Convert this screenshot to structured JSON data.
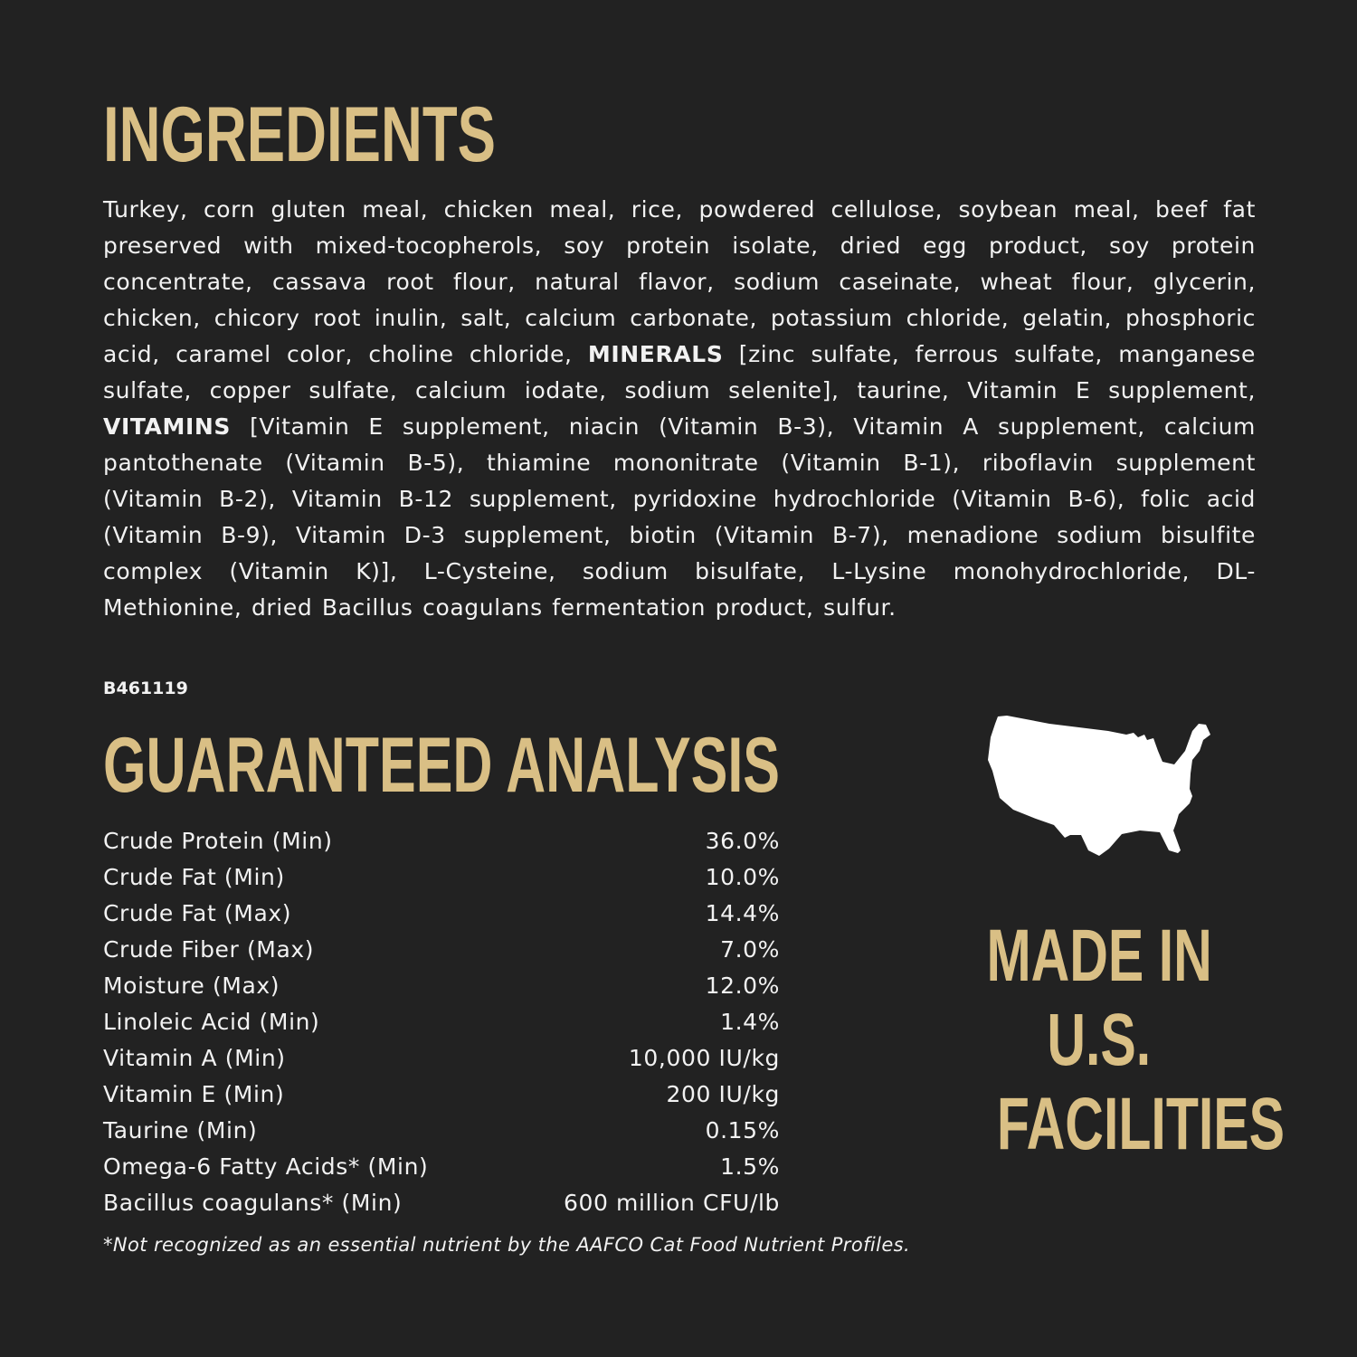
{
  "ingredients": {
    "title": "INGREDIENTS",
    "text_1": "Turkey, corn gluten meal, chicken meal, rice, powdered cellulose, soybean meal, beef fat preserved with mixed-tocopherols, soy protein isolate, dried egg product, soy protein concentrate, cassava root flour, natural flavor, sodium caseinate, wheat flour, glycerin, chicken, chicory root inulin, salt, calcium carbonate, potassium chloride, gelatin, phosphoric acid, caramel color, choline chloride, ",
    "minerals_label": "MINERALS",
    "text_2": " [zinc sulfate, ferrous sulfate, manganese sulfate, copper sulfate, calcium iodate, sodium selenite], taurine, Vitamin E supplement, ",
    "vitamins_label": "VITAMINS",
    "text_3": " [Vitamin E supplement, niacin (Vitamin B-3), Vitamin A supplement, calcium pantothenate (Vitamin B-5), thiamine mononitrate (Vitamin B-1), riboflavin supplement (Vitamin B-2), Vitamin B-12 supplement, pyridoxine hydrochloride (Vitamin B-6), folic acid (Vitamin B-9), Vitamin D-3 supplement, biotin (Vitamin B-7), menadione sodium bisulfite complex (Vitamin K)], L-Cysteine, sodium bisulfate, L-Lysine monohydrochloride, DL-Methionine, dried Bacillus coagulans fermentation product, sulfur.",
    "code": "B461119"
  },
  "analysis": {
    "title": "GUARANTEED ANALYSIS",
    "rows": [
      {
        "label": "Crude Protein (Min)",
        "value": "36.0%"
      },
      {
        "label": "Crude Fat (Min)",
        "value": "10.0%"
      },
      {
        "label": "Crude Fat (Max)",
        "value": "14.4%"
      },
      {
        "label": "Crude Fiber (Max)",
        "value": "7.0%"
      },
      {
        "label": "Moisture (Max)",
        "value": "12.0%"
      },
      {
        "label": "Linoleic Acid (Min)",
        "value": "1.4%"
      },
      {
        "label": "Vitamin A (Min)",
        "value": "10,000 IU/kg"
      },
      {
        "label": "Vitamin E (Min)",
        "value": "200 IU/kg"
      },
      {
        "label": "Taurine (Min)",
        "value": "0.15%"
      },
      {
        "label": "Omega-6 Fatty Acids* (Min)",
        "value": "1.5%"
      },
      {
        "label": "Bacillus coagulans* (Min)",
        "value": "600 million CFU/lb"
      }
    ],
    "footnote": "*Not recognized as an essential nutrient by the AAFCO Cat Food Nutrient Profiles."
  },
  "made_in": {
    "icon": "usa-map-icon",
    "lines": [
      "MADE IN",
      "U.S.",
      "FACILITIES"
    ]
  },
  "colors": {
    "background": "#222222",
    "accent": "#d9bf85",
    "text": "#f2f2f2"
  }
}
